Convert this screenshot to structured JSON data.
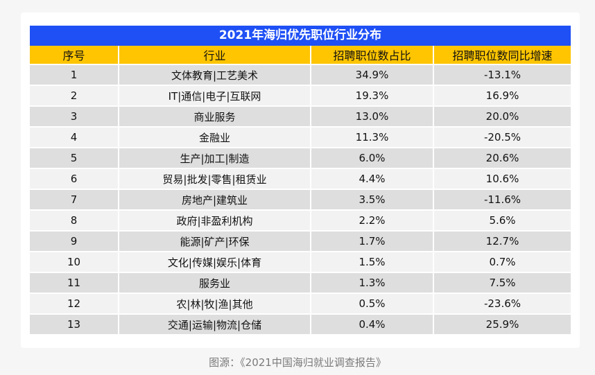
{
  "title": "2021年海归优先职位行业分布",
  "headers": [
    "序号",
    "行业",
    "招聘职位数占比",
    "招聘职位数同比增速"
  ],
  "rows": [
    [
      "1",
      "文体教育|工艺美术",
      "34.9%",
      "-13.1%"
    ],
    [
      "2",
      "IT|通信|电子|互联网",
      "19.3%",
      "16.9%"
    ],
    [
      "3",
      "商业服务",
      "13.0%",
      "20.0%"
    ],
    [
      "4",
      "金融业",
      "11.3%",
      "-20.5%"
    ],
    [
      "5",
      "生产|加工|制造",
      "6.0%",
      "20.6%"
    ],
    [
      "6",
      "贸易|批发|零售|租赁业",
      "4.4%",
      "10.6%"
    ],
    [
      "7",
      "房地产|建筑业",
      "3.5%",
      "-11.6%"
    ],
    [
      "8",
      "政府|非盈利机构",
      "2.2%",
      "5.6%"
    ],
    [
      "9",
      "能源|矿产|环保",
      "1.7%",
      "12.7%"
    ],
    [
      "10",
      "文化|传媒|娱乐|体育",
      "1.5%",
      "0.7%"
    ],
    [
      "11",
      "服务业",
      "1.3%",
      "7.5%"
    ],
    [
      "12",
      "农|林|牧|渔|其他",
      "0.5%",
      "-23.6%"
    ],
    [
      "13",
      "交通|运输|物流|仓储",
      "0.4%",
      "25.9%"
    ]
  ],
  "source": "图源：《2021中国海归就业调查报告》",
  "colors": {
    "title_bg": "#1f50f5",
    "header_bg": "#fec500",
    "row_odd": "#dedede",
    "row_even": "#f2f2f2"
  }
}
